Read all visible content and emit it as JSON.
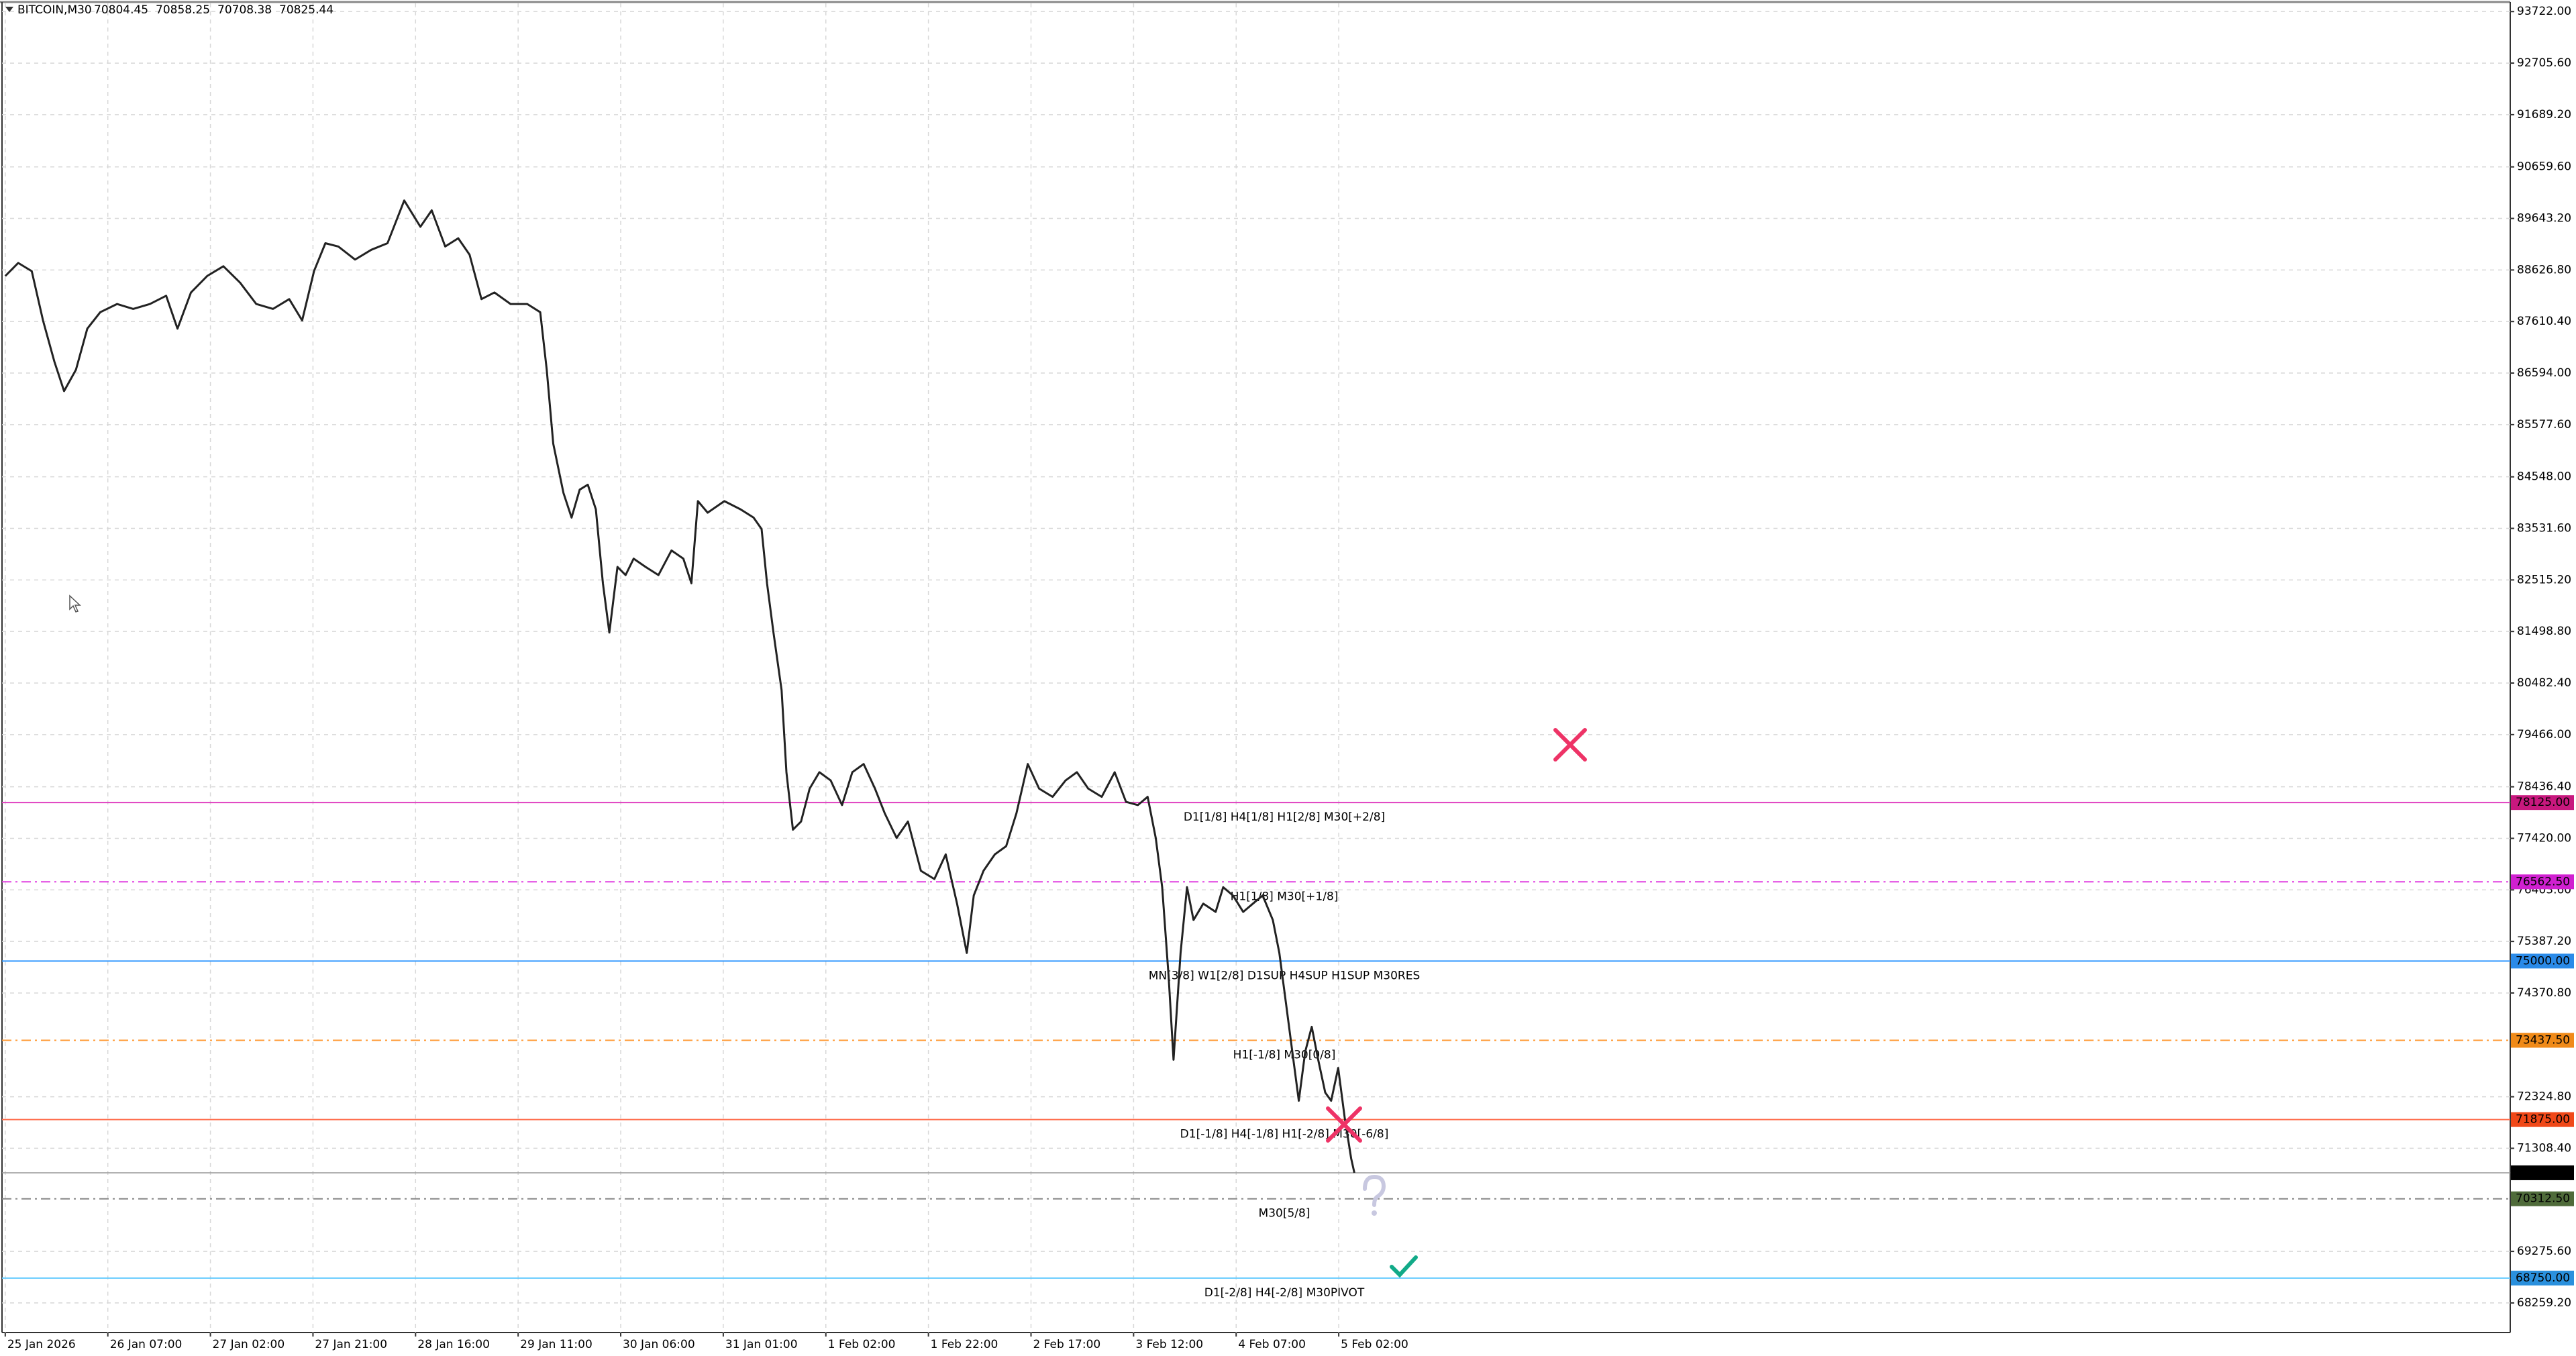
{
  "chart_data": {
    "type": "line",
    "header": {
      "symbol": "BITCOIN,M30",
      "ohlc": [
        70804.45,
        70858.25,
        70708.38,
        70825.44
      ]
    },
    "x": [
      0,
      2.4,
      4.9,
      7.0,
      9.1,
      10.9,
      13.1,
      15.2,
      17.6,
      20.7,
      23.7,
      26.8,
      29.8,
      31.9,
      34.4,
      37.4,
      40.4,
      43.5,
      46.5,
      49.6,
      52.6,
      55.0,
      57.2,
      59.3,
      61.7,
      64.8,
      67.8,
      70.8,
      73.9,
      76.9,
      79.0,
      81.5,
      83.9,
      86.0,
      88.2,
      90.6,
      93.6,
      96.7,
      99.1,
      100.3,
      101.5,
      103.4,
      104.9,
      106.4,
      107.9,
      109.4,
      110.7,
      111.9,
      113.4,
      114.9,
      116.4,
      118.6,
      121.0,
      123.4,
      125.6,
      127.1,
      128.3,
      130.1,
      133.2,
      136.2,
      138.6,
      140.1,
      141.1,
      142.3,
      143.8,
      144.7,
      145.9,
      147.4,
      149.0,
      150.8,
      152.9,
      155.0,
      156.9,
      159.0,
      161.1,
      162.9,
      165.1,
      167.2,
      169.6,
      172.1,
      174.2,
      176.3,
      178.1,
      179.4,
      181.2,
      183.3,
      185.4,
      187.3,
      189.4,
      191.5,
      194.0,
      196.4,
      198.5,
      200.6,
      203.1,
      205.5,
      207.6,
      209.8,
      211.6,
      213.1,
      214.3,
      215.5,
      216.4,
      217.7,
      218.9,
      220.1,
      221.9,
      224.2,
      225.6,
      227.4,
      229.3,
      231.1,
      232.9,
      234.8,
      236.0,
      237.2,
      238.4,
      239.6,
      240.8,
      242.0,
      243.2,
      244.5,
      245.6,
      246.9,
      248.1,
      249.3,
      249.9
    ],
    "series": [
      {
        "color": "#222222",
        "values": [
          88507,
          88766,
          88604,
          87632,
          86822,
          86239,
          86660,
          87470,
          87794,
          87956,
          87859,
          87956,
          88118,
          87470,
          88183,
          88507,
          88701,
          88377,
          87956,
          87859,
          88053,
          87632,
          88604,
          89154,
          89090,
          88831,
          89025,
          89154,
          89997,
          89478,
          89802,
          89090,
          89252,
          88928,
          88053,
          88183,
          87956,
          87956,
          87794,
          86660,
          85202,
          84231,
          83745,
          84295,
          84393,
          83907,
          82449,
          81477,
          82773,
          82611,
          82935,
          82773,
          82611,
          83097,
          82935,
          82449,
          84069,
          83842,
          84069,
          83907,
          83745,
          83518,
          82449,
          81477,
          80343,
          78724,
          77590,
          77752,
          78400,
          78724,
          78562,
          78076,
          78724,
          78886,
          78400,
          77914,
          77428,
          77752,
          76780,
          76618,
          77104,
          76132,
          75160,
          76294,
          76780,
          77104,
          77266,
          77914,
          78886,
          78400,
          78238,
          78562,
          78724,
          78400,
          78238,
          78724,
          78140,
          78076,
          78238,
          77428,
          76456,
          74674,
          73055,
          75160,
          76456,
          75809,
          76132,
          75970,
          76456,
          76294,
          75970,
          76132,
          76294,
          75809,
          75160,
          74188,
          73217,
          72245,
          73217,
          73703,
          73055,
          72407,
          72245,
          72893,
          71922,
          71111,
          70825.44
        ]
      }
    ],
    "xlim": [
      -0.6,
      464
    ],
    "xticks": [
      {
        "value": 0,
        "label": "25 Jan 2026"
      },
      {
        "value": 19,
        "label": "26 Jan 07:00"
      },
      {
        "value": 38,
        "label": "27 Jan 02:00"
      },
      {
        "value": 57,
        "label": "27 Jan 21:00"
      },
      {
        "value": 76,
        "label": "28 Jan 16:00"
      },
      {
        "value": 95,
        "label": "29 Jan 11:00"
      },
      {
        "value": 114,
        "label": "30 Jan 06:00"
      },
      {
        "value": 133,
        "label": "31 Jan 01:00"
      },
      {
        "value": 152,
        "label": "1 Feb 02:00"
      },
      {
        "value": 171,
        "label": "1 Feb 22:00"
      },
      {
        "value": 190,
        "label": "2 Feb 17:00"
      },
      {
        "value": 209,
        "label": "3 Feb 12:00"
      },
      {
        "value": 228,
        "label": "4 Feb 07:00"
      },
      {
        "value": 247,
        "label": "5 Feb 02:00"
      }
    ],
    "ylim": [
      67676,
      93884
    ],
    "yticks": [
      {
        "value": 93722,
        "label": "93722.00"
      },
      {
        "value": 92705.6,
        "label": "92705.60"
      },
      {
        "value": 91689.2,
        "label": "91689.20"
      },
      {
        "value": 90659.6,
        "label": "90659.60"
      },
      {
        "value": 89643.2,
        "label": "89643.20"
      },
      {
        "value": 88626.8,
        "label": "88626.80"
      },
      {
        "value": 87610.4,
        "label": "87610.40"
      },
      {
        "value": 86594,
        "label": "86594.00"
      },
      {
        "value": 85577.6,
        "label": "85577.60"
      },
      {
        "value": 84548,
        "label": "84548.00"
      },
      {
        "value": 83531.6,
        "label": "83531.60"
      },
      {
        "value": 82515.2,
        "label": "82515.20"
      },
      {
        "value": 81498.8,
        "label": "81498.80"
      },
      {
        "value": 80482.4,
        "label": "80482.40"
      },
      {
        "value": 79466,
        "label": "79466.00"
      },
      {
        "value": 78436.4,
        "label": "78436.40"
      },
      {
        "value": 77420,
        "label": "77420.00"
      },
      {
        "value": 76403.6,
        "label": "76403.60"
      },
      {
        "value": 75387.2,
        "label": "75387.20"
      },
      {
        "value": 74370.8,
        "label": "74370.80"
      },
      {
        "value": 72324.8,
        "label": "72324.80"
      },
      {
        "value": 71308.4,
        "label": "71308.40"
      },
      {
        "value": 69275.6,
        "label": "69275.60"
      },
      {
        "value": 68259.2,
        "label": "68259.20"
      }
    ],
    "grid": true,
    "levels": [
      {
        "value": 78125,
        "value_label": "78125.00",
        "text": "D1[1/8] H4[1/8] H1[2/8] M30[+2/8]",
        "color": "#e040c0",
        "label_color": "#c8187e",
        "dashed": false
      },
      {
        "value": 76562.5,
        "value_label": "76562.50",
        "text": "H1[1/8] M30[+1/8]",
        "color": "#e040e0",
        "label_color": "#d020d0",
        "dashed": true
      },
      {
        "value": 75000,
        "value_label": "75000.00",
        "text": "MN[3/8] W1[2/8] D1SUP H4SUP H1SUP M30RES",
        "color": "#3399ff",
        "label_color": "#2a8ae8",
        "dashed": false
      },
      {
        "value": 73437.5,
        "value_label": "73437.50",
        "text": "H1[-1/8] M30[0/8]",
        "color": "#ff9933",
        "label_color": "#f08a18",
        "dashed": true
      },
      {
        "value": 71875,
        "value_label": "71875.00",
        "text": "D1[-1/8] H4[-1/8] H1[-2/8] M30[-6/8]",
        "color": "#ff7050",
        "label_color": "#f04818",
        "dashed": false
      },
      {
        "value": 70312.5,
        "value_label": "70312.50",
        "text": "M30[5/8]",
        "color": "#888888",
        "label_color": "#4f6b3a",
        "dashed": true
      },
      {
        "value": 68750,
        "value_label": "68750.00",
        "text": "D1[-2/8] H4[-2/8] M30PIVOT",
        "color": "#66ccff",
        "label_color": "#2a90dd",
        "dashed": false
      }
    ],
    "current": {
      "value": 70825.44,
      "value_label": "70825.44"
    }
  }
}
